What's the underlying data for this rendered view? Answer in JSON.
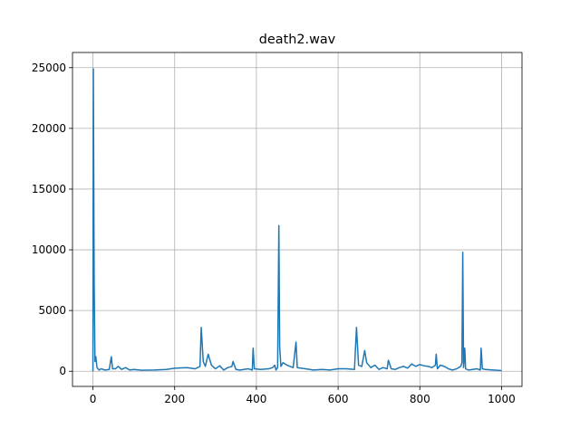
{
  "chart_data": {
    "type": "line",
    "title": "death2.wav",
    "x": [
      0,
      1,
      3,
      5,
      7,
      10,
      15,
      20,
      30,
      40,
      45,
      48,
      55,
      62,
      70,
      80,
      90,
      100,
      120,
      150,
      180,
      200,
      230,
      250,
      262,
      265,
      270,
      275,
      282,
      290,
      300,
      310,
      320,
      330,
      340,
      343,
      350,
      360,
      380,
      390,
      392,
      395,
      410,
      430,
      440,
      445,
      448,
      452,
      455,
      457,
      460,
      465,
      475,
      490,
      497,
      500,
      520,
      540,
      560,
      580,
      600,
      620,
      640,
      645,
      650,
      658,
      665,
      670,
      680,
      690,
      700,
      710,
      720,
      723,
      730,
      740,
      750,
      760,
      770,
      780,
      790,
      800,
      810,
      820,
      830,
      838,
      840,
      843,
      850,
      860,
      870,
      880,
      890,
      900,
      903,
      905,
      907,
      910,
      912,
      920,
      940,
      948,
      950,
      953,
      960,
      980,
      1000
    ],
    "series": [
      {
        "name": "death2.wav",
        "color": "#1f77b4",
        "values": [
          0,
          24900,
          7500,
          800,
          1200,
          300,
          100,
          200,
          100,
          150,
          1200,
          200,
          200,
          400,
          150,
          300,
          100,
          150,
          80,
          100,
          150,
          250,
          300,
          200,
          400,
          3600,
          800,
          400,
          1400,
          500,
          200,
          450,
          100,
          300,
          400,
          800,
          150,
          100,
          200,
          100,
          1900,
          200,
          150,
          200,
          300,
          500,
          100,
          300,
          12000,
          2000,
          400,
          700,
          500,
          300,
          2400,
          300,
          200,
          100,
          150,
          100,
          200,
          200,
          150,
          3600,
          500,
          400,
          1700,
          700,
          300,
          500,
          150,
          300,
          200,
          900,
          200,
          150,
          300,
          400,
          250,
          600,
          400,
          550,
          450,
          400,
          300,
          500,
          1400,
          200,
          500,
          400,
          200,
          100,
          200,
          400,
          700,
          9800,
          300,
          1900,
          200,
          100,
          200,
          100,
          1900,
          200,
          150,
          100,
          50
        ]
      }
    ],
    "xlim": [
      -50,
      1050
    ],
    "ylim": [
      -1250,
      26250
    ],
    "xticks": [
      0,
      200,
      400,
      600,
      800,
      1000
    ],
    "yticks": [
      0,
      5000,
      10000,
      15000,
      20000,
      25000
    ],
    "grid": true
  }
}
